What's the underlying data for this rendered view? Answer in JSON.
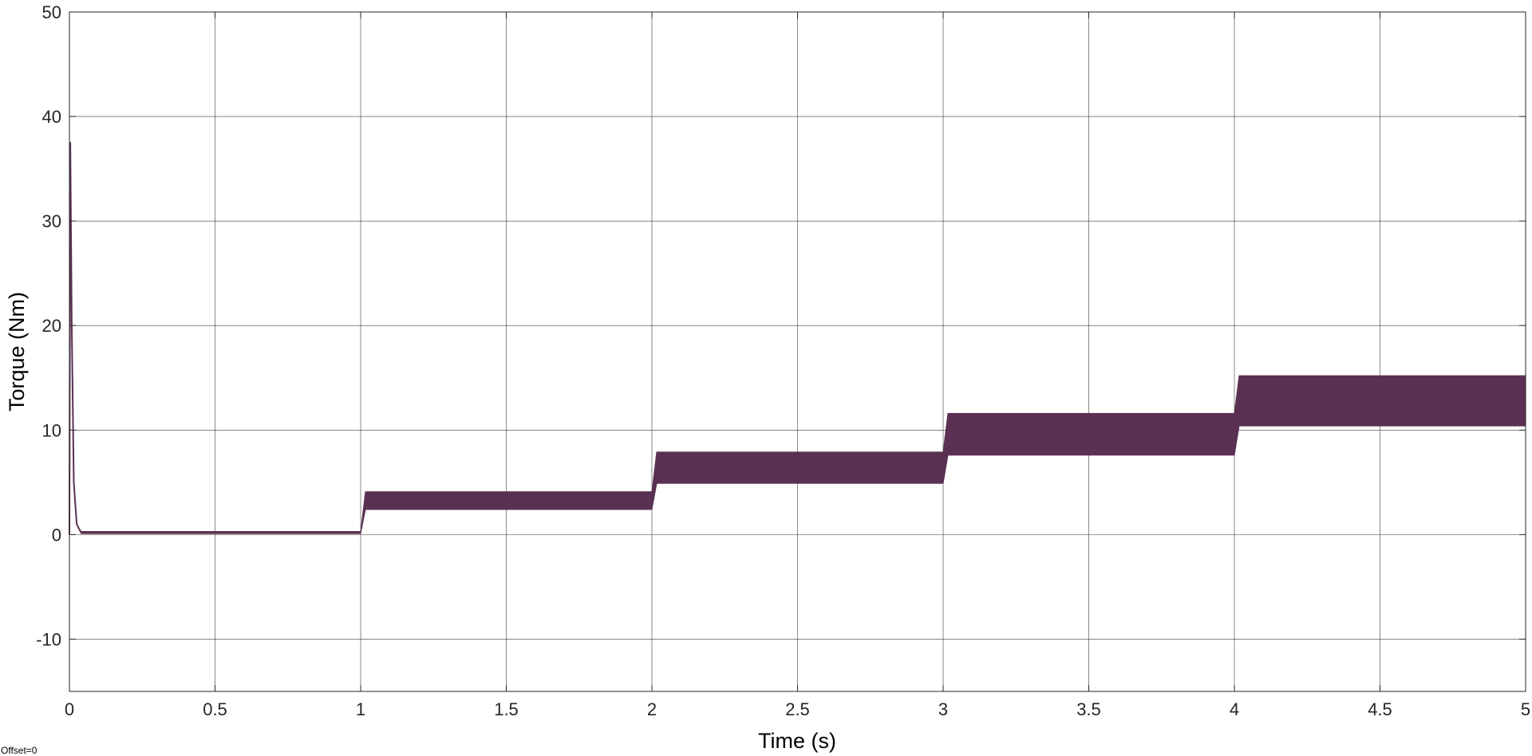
{
  "chart_data": {
    "type": "line",
    "title": "",
    "xlabel": "Time (s)",
    "ylabel": "Torque (Nm)",
    "xlim": [
      0,
      5
    ],
    "ylim": [
      -15,
      50
    ],
    "xticks": [
      0,
      0.5,
      1,
      1.5,
      2,
      2.5,
      3,
      3.5,
      4,
      4.5,
      5
    ],
    "xtick_labels": [
      "0",
      "0.5",
      "1",
      "1.5",
      "2",
      "2.5",
      "3",
      "3.5",
      "4",
      "4.5",
      "5"
    ],
    "yticks": [
      -10,
      0,
      10,
      20,
      30,
      40,
      50
    ],
    "ytick_labels": [
      "-10",
      "0",
      "10",
      "20",
      "30",
      "40",
      "50"
    ],
    "grid": true,
    "legend": false,
    "series": [
      {
        "color": "#5a3152",
        "startup": {
          "t": [
            0,
            0.003,
            0.008,
            0.015,
            0.025,
            0.04
          ],
          "y": [
            0,
            37.5,
            20,
            5,
            1,
            0.2
          ]
        },
        "ripple_bands": [
          {
            "t_start": 0.04,
            "t_end": 1.0,
            "min": 0.1,
            "max": 0.3
          },
          {
            "t_start": 1.0,
            "t_end": 2.0,
            "min": 2.4,
            "max": 4.1
          },
          {
            "t_start": 2.0,
            "t_end": 3.0,
            "min": 4.9,
            "max": 7.9
          },
          {
            "t_start": 3.0,
            "t_end": 4.0,
            "min": 7.6,
            "max": 11.6
          },
          {
            "t_start": 4.0,
            "t_end": 5.0,
            "min": 10.4,
            "max": 15.2
          }
        ]
      }
    ]
  },
  "footer": {
    "offset_text": "Offset=0"
  },
  "colors": {
    "signal": "#5a3152",
    "grid": "#262626",
    "background": "#ffffff"
  }
}
